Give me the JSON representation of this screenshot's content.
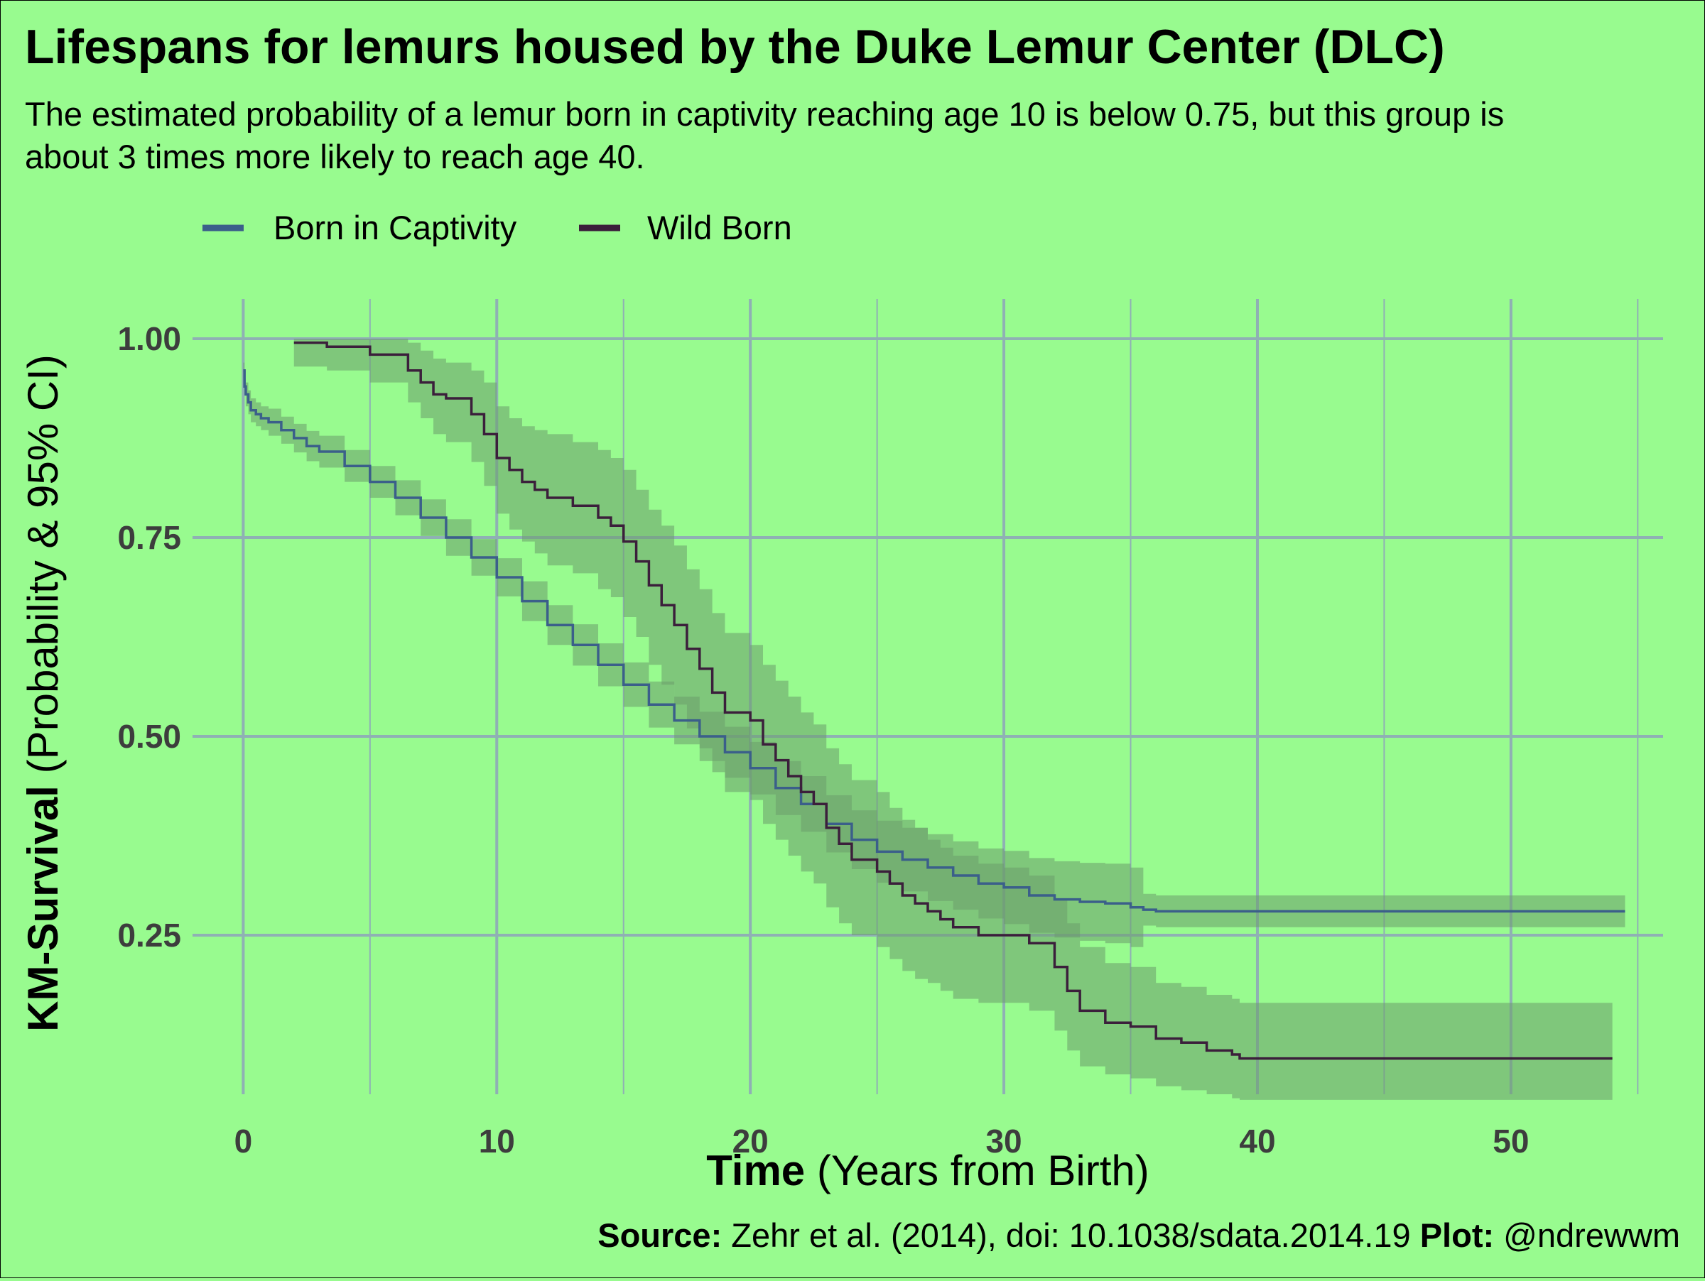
{
  "chart_data": {
    "type": "line",
    "title": "Lifespans for lemurs housed by the Duke Lemur Center (DLC)",
    "subtitle_line1": "The estimated probability of a lemur born in captivity reaching age 10 is below 0.75, but this group is",
    "subtitle_line2": "about 3 times more likely to reach age 40.",
    "xlabel_bold": "Time",
    "xlabel_rest": " (Years from Birth)",
    "ylabel_bold": "KM-Survival",
    "ylabel_rest": " (Probability & 95% CI)",
    "caption_source_bold": "Source:",
    "caption_source_text": " Zehr et al. (2014), doi: 10.1038/sdata.2014.19 ",
    "caption_plot_bold": "Plot:",
    "caption_plot_text": " @ndrewwm",
    "xlim": [
      -2,
      56
    ],
    "ylim": [
      0.05,
      1.05
    ],
    "x_ticks": [
      0,
      10,
      20,
      30,
      40,
      50
    ],
    "x_tick_labels": [
      "0",
      "10",
      "20",
      "30",
      "40",
      "50"
    ],
    "y_ticks": [
      0.25,
      0.5,
      0.75,
      1.0
    ],
    "y_tick_labels": [
      "0.25",
      "0.50",
      "0.75",
      "1.00"
    ],
    "grid": true,
    "legend_position": "top-left",
    "colors": {
      "background": "#98fb8f",
      "grid": "#8fb0b4",
      "ribbon": "#6b9d6b",
      "text": "#000000",
      "tick_text": "#3d3d3d"
    },
    "series": [
      {
        "name": "Born in Captivity",
        "color": "#3b5f8a",
        "x": [
          0,
          0.05,
          0.1,
          0.2,
          0.3,
          0.5,
          0.7,
          1,
          1.5,
          2,
          2.5,
          3,
          4,
          5,
          6,
          7,
          8,
          9,
          10,
          11,
          12,
          13,
          14,
          15,
          16,
          17,
          18,
          19,
          20,
          21,
          22,
          23,
          24,
          25,
          26,
          27,
          28,
          29,
          30,
          31,
          32,
          33,
          34,
          35,
          35.5,
          36,
          40,
          45,
          50,
          54.5
        ],
        "y": [
          0.96,
          0.94,
          0.93,
          0.92,
          0.91,
          0.905,
          0.9,
          0.895,
          0.885,
          0.875,
          0.865,
          0.858,
          0.84,
          0.82,
          0.8,
          0.775,
          0.75,
          0.725,
          0.7,
          0.67,
          0.64,
          0.615,
          0.59,
          0.565,
          0.54,
          0.52,
          0.5,
          0.48,
          0.46,
          0.435,
          0.415,
          0.39,
          0.37,
          0.355,
          0.345,
          0.335,
          0.325,
          0.315,
          0.31,
          0.3,
          0.295,
          0.292,
          0.29,
          0.285,
          0.282,
          0.28,
          0.28,
          0.28,
          0.28,
          0.28
        ],
        "ci_lower": [
          0.95,
          0.93,
          0.915,
          0.905,
          0.895,
          0.89,
          0.885,
          0.878,
          0.868,
          0.857,
          0.846,
          0.838,
          0.82,
          0.8,
          0.778,
          0.752,
          0.727,
          0.702,
          0.676,
          0.645,
          0.615,
          0.589,
          0.563,
          0.537,
          0.511,
          0.49,
          0.469,
          0.448,
          0.427,
          0.401,
          0.38,
          0.354,
          0.333,
          0.316,
          0.305,
          0.293,
          0.282,
          0.271,
          0.264,
          0.253,
          0.247,
          0.243,
          0.24,
          0.235,
          0.262,
          0.26,
          0.26,
          0.26,
          0.26,
          0.26
        ],
        "ci_upper": [
          0.97,
          0.95,
          0.945,
          0.935,
          0.925,
          0.92,
          0.915,
          0.912,
          0.902,
          0.893,
          0.884,
          0.878,
          0.86,
          0.84,
          0.822,
          0.798,
          0.773,
          0.748,
          0.724,
          0.695,
          0.665,
          0.641,
          0.617,
          0.593,
          0.569,
          0.55,
          0.531,
          0.512,
          0.493,
          0.469,
          0.45,
          0.426,
          0.407,
          0.394,
          0.385,
          0.377,
          0.368,
          0.359,
          0.356,
          0.347,
          0.343,
          0.341,
          0.34,
          0.335,
          0.302,
          0.3,
          0.3,
          0.3,
          0.3,
          0.3
        ]
      },
      {
        "name": "Wild Born",
        "color": "#3b1f3b",
        "x": [
          2,
          3.3,
          5,
          6.5,
          7,
          7.5,
          8,
          9,
          9.5,
          10,
          10.5,
          11,
          11.5,
          12,
          13,
          14,
          14.5,
          15,
          15.5,
          16,
          16.5,
          17,
          17.5,
          18,
          18.5,
          19,
          20,
          20.5,
          21,
          21.5,
          22,
          22.5,
          23,
          23.5,
          24,
          25,
          25.5,
          26,
          26.5,
          27,
          27.5,
          28,
          29,
          30,
          31,
          32,
          32.5,
          33,
          34,
          35,
          36,
          37,
          38,
          39,
          39.3,
          45,
          50,
          54
        ],
        "y": [
          0.995,
          0.99,
          0.98,
          0.96,
          0.945,
          0.93,
          0.925,
          0.905,
          0.88,
          0.85,
          0.835,
          0.82,
          0.81,
          0.8,
          0.79,
          0.775,
          0.765,
          0.745,
          0.72,
          0.69,
          0.665,
          0.64,
          0.61,
          0.585,
          0.555,
          0.53,
          0.52,
          0.49,
          0.47,
          0.45,
          0.43,
          0.415,
          0.385,
          0.365,
          0.345,
          0.33,
          0.315,
          0.3,
          0.29,
          0.28,
          0.27,
          0.26,
          0.25,
          0.25,
          0.24,
          0.21,
          0.18,
          0.155,
          0.14,
          0.135,
          0.12,
          0.115,
          0.105,
          0.1,
          0.095,
          0.095,
          0.095,
          0.095
        ],
        "ci_lower": [
          0.965,
          0.96,
          0.945,
          0.92,
          0.9,
          0.88,
          0.87,
          0.845,
          0.815,
          0.78,
          0.76,
          0.745,
          0.73,
          0.715,
          0.705,
          0.685,
          0.675,
          0.65,
          0.625,
          0.59,
          0.565,
          0.54,
          0.51,
          0.485,
          0.455,
          0.43,
          0.42,
          0.39,
          0.37,
          0.35,
          0.33,
          0.315,
          0.285,
          0.265,
          0.25,
          0.235,
          0.22,
          0.205,
          0.195,
          0.19,
          0.18,
          0.17,
          0.165,
          0.165,
          0.155,
          0.13,
          0.105,
          0.085,
          0.075,
          0.07,
          0.06,
          0.055,
          0.05,
          0.045,
          0.043,
          0.043,
          0.043,
          0.043
        ],
        "ci_upper": [
          1.0,
          1.0,
          1.0,
          0.995,
          0.985,
          0.975,
          0.97,
          0.96,
          0.945,
          0.915,
          0.9,
          0.89,
          0.885,
          0.88,
          0.87,
          0.86,
          0.85,
          0.835,
          0.81,
          0.785,
          0.765,
          0.74,
          0.71,
          0.685,
          0.655,
          0.63,
          0.615,
          0.59,
          0.57,
          0.55,
          0.53,
          0.515,
          0.485,
          0.465,
          0.445,
          0.43,
          0.41,
          0.395,
          0.385,
          0.37,
          0.36,
          0.35,
          0.34,
          0.335,
          0.325,
          0.295,
          0.265,
          0.235,
          0.215,
          0.21,
          0.19,
          0.185,
          0.175,
          0.17,
          0.165,
          0.165,
          0.165,
          0.165
        ]
      }
    ]
  }
}
